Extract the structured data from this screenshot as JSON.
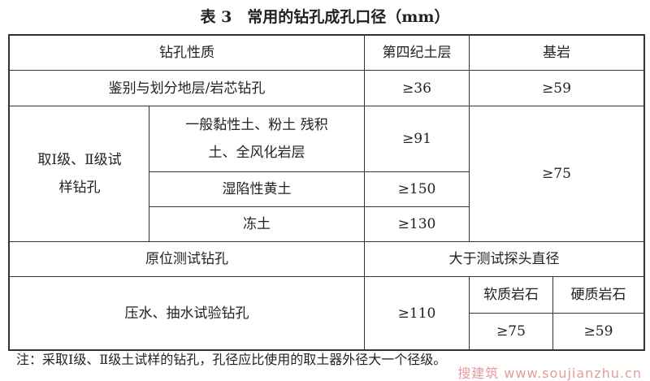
{
  "title": "表 3　常用的钻孔成孔口径（mm）",
  "table": {
    "headers": [
      "钻孔性质",
      "第四纪土层",
      "基岩"
    ],
    "row_identify": {
      "label": "鉴别与划分地层/岩芯钻孔",
      "quaternary": "≥36",
      "bedrock": "≥59"
    },
    "sampling": {
      "label": "取Ⅰ级、Ⅱ级试样钻孔",
      "bedrock": "≥75",
      "subrows": [
        {
          "label": "一般黏性土、粉土 残积土、全风化岩层",
          "quaternary": "≥91"
        },
        {
          "label": "湿陷性黄土",
          "quaternary": "≥150"
        },
        {
          "label": "冻土",
          "quaternary": "≥130"
        }
      ]
    },
    "row_insitu": {
      "label": "原位测试钻孔",
      "value": "大于测试探头直径"
    },
    "row_pumping": {
      "label": "压水、抽水试验钻孔",
      "quaternary": "≥110",
      "soft_rock_header": "软质岩石",
      "hard_rock_header": "硬质岩石",
      "soft_rock": "≥75",
      "hard_rock": "≥59"
    }
  },
  "note": "注：采取Ⅰ级、Ⅱ级土试样的钻孔，孔径应比使用的取土器外径大一个径级。",
  "watermark": "搜建筑 www.soujianzhu.cn"
}
